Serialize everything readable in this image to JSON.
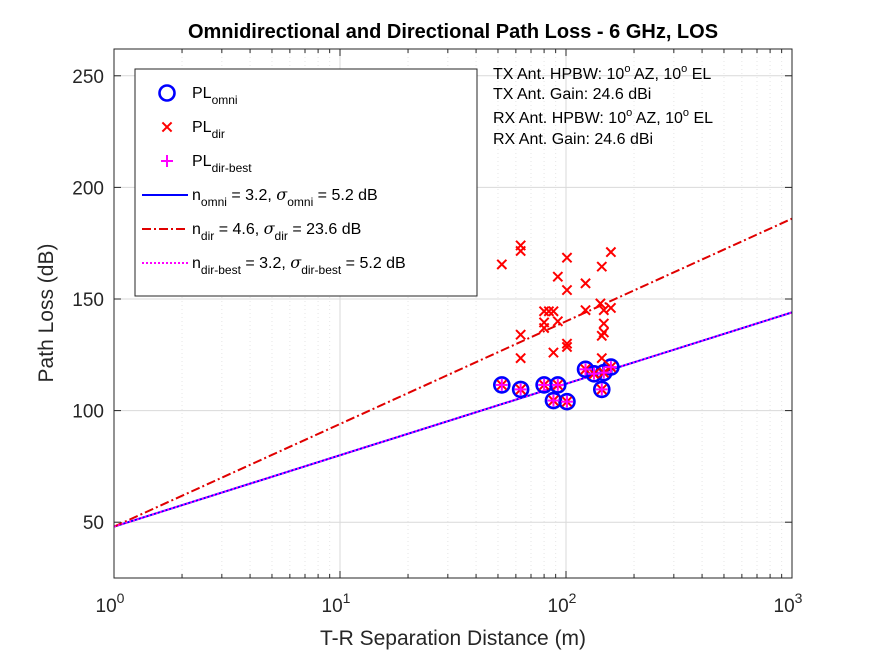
{
  "chart_data": {
    "type": "scatter",
    "title": "Omnidirectional and Directional Path Loss - 6 GHz, LOS",
    "xlabel": "T-R Separation Distance (m)",
    "ylabel": "Path Loss (dB)",
    "xscale": "log",
    "xlim": [
      1,
      1000
    ],
    "ylim": [
      25,
      262
    ],
    "xticks": [
      {
        "value": 1,
        "base": "10",
        "exp": "0"
      },
      {
        "value": 10,
        "base": "10",
        "exp": "1"
      },
      {
        "value": 100,
        "base": "10",
        "exp": "2"
      },
      {
        "value": 1000,
        "base": "10",
        "exp": "3"
      }
    ],
    "yticks": [
      50,
      100,
      150,
      200,
      250
    ],
    "grid": true,
    "legend_position": "top-left",
    "series": [
      {
        "key": "omni",
        "marker": "circle",
        "color": "#0000ff",
        "legend": {
          "main": "PL",
          "sub": "omni"
        },
        "points": [
          [
            52,
            111.5
          ],
          [
            63,
            109.5
          ],
          [
            80,
            111.5
          ],
          [
            88,
            104.5
          ],
          [
            92,
            111.5
          ],
          [
            101,
            104
          ],
          [
            122,
            118.5
          ],
          [
            133,
            116.5
          ],
          [
            144,
            109.5
          ],
          [
            147,
            117
          ],
          [
            158,
            119.5
          ]
        ]
      },
      {
        "key": "dir",
        "marker": "x",
        "color": "#ff0000",
        "legend": {
          "main": "PL",
          "sub": "dir"
        },
        "points": [
          [
            52,
            111.5
          ],
          [
            63,
            109.5
          ],
          [
            80,
            111.5
          ],
          [
            88,
            104.5
          ],
          [
            92,
            111.5
          ],
          [
            101,
            104
          ],
          [
            122,
            118.5
          ],
          [
            133,
            116.5
          ],
          [
            144,
            109.5
          ],
          [
            147,
            117
          ],
          [
            158,
            119.5
          ],
          [
            52,
            165.5
          ],
          [
            63,
            174
          ],
          [
            63,
            171.5
          ],
          [
            63,
            134
          ],
          [
            63,
            123.5
          ],
          [
            80,
            144.5
          ],
          [
            80,
            139.5
          ],
          [
            80,
            137
          ],
          [
            84,
            144.5
          ],
          [
            88,
            126
          ],
          [
            88,
            144.5
          ],
          [
            92,
            140
          ],
          [
            92,
            160
          ],
          [
            101,
            168.5
          ],
          [
            101,
            154
          ],
          [
            101,
            130
          ],
          [
            101,
            128.5
          ],
          [
            122,
            145
          ],
          [
            122,
            157
          ],
          [
            142,
            148
          ],
          [
            144,
            164.5
          ],
          [
            144,
            133.5
          ],
          [
            144,
            123.5
          ],
          [
            147,
            145
          ],
          [
            147,
            139
          ],
          [
            147,
            135
          ],
          [
            158,
            171
          ],
          [
            158,
            146
          ]
        ]
      },
      {
        "key": "dir_best",
        "marker": "plus",
        "color": "#ff00ff",
        "legend": {
          "main": "PL",
          "sub": "dir-best"
        },
        "points": [
          [
            52,
            111.5
          ],
          [
            63,
            109.5
          ],
          [
            80,
            111.5
          ],
          [
            88,
            104.5
          ],
          [
            92,
            111.5
          ],
          [
            101,
            104
          ],
          [
            122,
            118.5
          ],
          [
            133,
            116.5
          ],
          [
            144,
            109.5
          ],
          [
            147,
            117
          ],
          [
            158,
            119.5
          ]
        ]
      },
      {
        "key": "fit_omni",
        "line": "solid",
        "color": "#0000ff",
        "fspl_1m": 48,
        "n": 3.2,
        "legend": {
          "n_sub": "omni",
          "n_val": "3.2",
          "sigma_sub": "omni",
          "sigma_val": "5.2 dB"
        }
      },
      {
        "key": "fit_dir",
        "line": "dashdot",
        "color": "#e00000",
        "fspl_1m": 48,
        "n": 4.6,
        "legend": {
          "n_sub": "dir",
          "n_val": "4.6",
          "sigma_sub": "dir",
          "sigma_val": "23.6 dB"
        }
      },
      {
        "key": "fit_dir_best",
        "line": "dotted",
        "color": "#ff00ff",
        "fspl_1m": 48,
        "n": 3.2,
        "legend": {
          "n_sub": "dir-best",
          "n_val": "3.2",
          "sigma_sub": "dir-best",
          "sigma_val": "5.2 dB"
        }
      }
    ],
    "annotations": {
      "tx_hpbw": {
        "prefix": "TX Ant. HPBW: 10",
        "sup1": "o",
        "mid": " AZ, 10",
        "sup2": "o",
        "suffix": " EL"
      },
      "tx_gain": "TX Ant. Gain: 24.6 dBi",
      "rx_hpbw": {
        "prefix": "RX Ant. HPBW: 10",
        "sup1": "o",
        "mid": " AZ, 10",
        "sup2": "o",
        "suffix": " EL"
      },
      "rx_gain": "RX Ant. Gain: 24.6 dBi"
    },
    "symbols": {
      "n": "n",
      "eq": " = ",
      "sep": ", ",
      "sigma": "σ"
    }
  }
}
